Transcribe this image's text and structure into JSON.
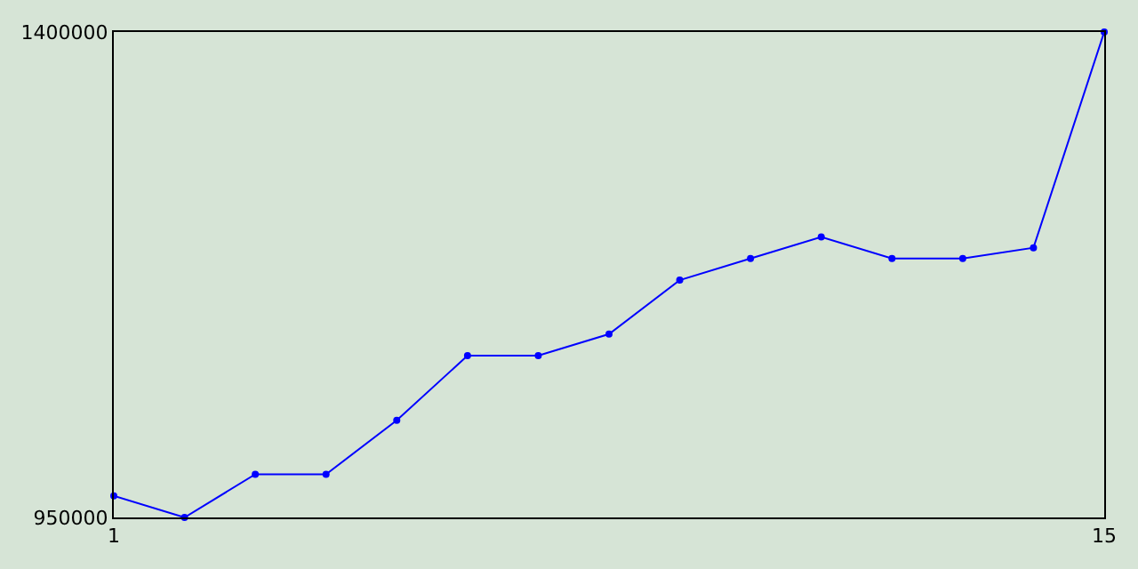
{
  "chart_data": {
    "type": "line",
    "x": [
      1,
      2,
      3,
      4,
      5,
      6,
      7,
      8,
      9,
      10,
      11,
      12,
      13,
      14,
      15
    ],
    "series": [
      {
        "color": "#0000ff",
        "values": [
          970000,
          950000,
          990000,
          990000,
          1040000,
          1100000,
          1100000,
          1120000,
          1170000,
          1190000,
          1210000,
          1190000,
          1190000,
          1200000,
          1400000
        ]
      }
    ],
    "xlim": [
      1,
      15
    ],
    "xticks": [
      1,
      15
    ],
    "ylim": [
      950000,
      1400000
    ],
    "yticks": [
      950000,
      1400000
    ],
    "marker": "circle",
    "line_style": "solid"
  }
}
